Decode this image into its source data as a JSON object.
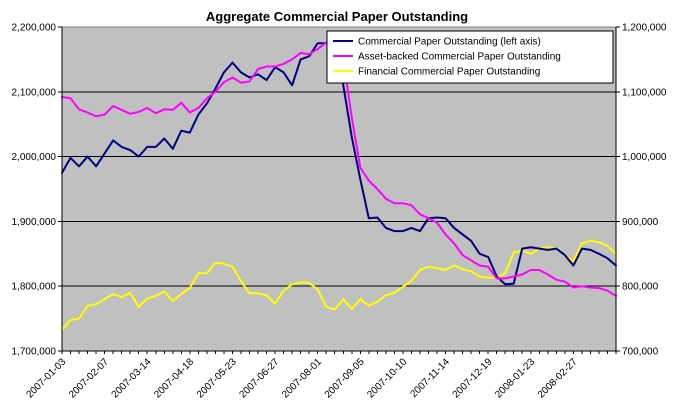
{
  "chart_data": {
    "type": "line",
    "title": "Aggregate Commercial Paper Outstanding",
    "grid": true,
    "legend_position": "top-right",
    "plot_background": "#c0c0c0",
    "left_axis": {
      "range": [
        1700000,
        2200000
      ],
      "ticks": [
        "1,700,000",
        "1,800,000",
        "1,900,000",
        "2,000,000",
        "2,100,000",
        "2,200,000"
      ]
    },
    "right_axis": {
      "range": [
        700000,
        1200000
      ],
      "ticks": [
        "700,000",
        "800,000",
        "900,000",
        "1,000,000",
        "1,100,000",
        "1,200,000"
      ]
    },
    "x_tick_labels": [
      "2007-01-03",
      "2007-02-07",
      "2007-03-14",
      "2007-04-18",
      "2007-05-23",
      "2007-06-27",
      "2007-08-01",
      "2007-09-05",
      "2007-10-10",
      "2007-11-14",
      "2007-12-19",
      "2008-01-23",
      "2008-02-27"
    ],
    "x_index_count": 66,
    "series": [
      {
        "name": "Commercial Paper Outstanding (left axis)",
        "axis": "left",
        "color": "#000080",
        "values": [
          1975000,
          1998000,
          1985000,
          2000000,
          1985000,
          2005000,
          2025000,
          2015000,
          2010000,
          2000000,
          2015000,
          2015000,
          2028000,
          2012000,
          2040000,
          2037000,
          2065000,
          2082000,
          2105000,
          2130000,
          2145000,
          2130000,
          2122000,
          2127000,
          2118000,
          2138000,
          2130000,
          2110000,
          2150000,
          2155000,
          2175000,
          2175000,
          2185000,
          2110000,
          2030000,
          1965000,
          1905000,
          1906000,
          1890000,
          1885000,
          1885000,
          1890000,
          1885000,
          1905000,
          1906000,
          1905000,
          1890000,
          1880000,
          1870000,
          1850000,
          1845000,
          1815000,
          1803000,
          1804000,
          1858000,
          1860000,
          1858000,
          1856000,
          1858000,
          1848000,
          1832000,
          1858000,
          1856000,
          1850000,
          1843000,
          1832000
        ]
      },
      {
        "name": "Asset-backed Commercial Paper Outstanding",
        "axis": "right",
        "color": "#ff00ff",
        "values": [
          1092000,
          1090000,
          1073000,
          1068000,
          1062000,
          1065000,
          1078000,
          1072000,
          1066000,
          1069000,
          1075000,
          1067000,
          1073000,
          1072000,
          1083000,
          1068000,
          1075000,
          1090000,
          1100000,
          1115000,
          1122000,
          1114000,
          1116000,
          1135000,
          1139000,
          1139000,
          1143000,
          1150000,
          1160000,
          1158000,
          1166000,
          1176000,
          1185000,
          1150000,
          1060000,
          983000,
          963000,
          950000,
          935000,
          928000,
          928000,
          925000,
          911000,
          905000,
          898000,
          880000,
          866000,
          848000,
          840000,
          832000,
          830000,
          812000,
          812000,
          815000,
          818000,
          825000,
          825000,
          818000,
          810000,
          807000,
          798000,
          800000,
          798000,
          797000,
          793000,
          785000
        ]
      },
      {
        "name": "Financial Commercial Paper Outstanding",
        "axis": "right",
        "color": "#ffff00",
        "values": [
          733000,
          748000,
          750000,
          770000,
          772000,
          780000,
          788000,
          783000,
          790000,
          768000,
          781000,
          785000,
          792000,
          777000,
          788000,
          797000,
          820000,
          820000,
          836000,
          835000,
          830000,
          808000,
          789000,
          789000,
          786000,
          773000,
          793000,
          803000,
          806000,
          805000,
          795000,
          768000,
          764000,
          780000,
          765000,
          780000,
          770000,
          776000,
          786000,
          790000,
          799000,
          808000,
          825000,
          830000,
          828000,
          825000,
          832000,
          826000,
          823000,
          815000,
          813000,
          813000,
          820000,
          852000,
          855000,
          850000,
          858000,
          860000,
          858000,
          848000,
          838000,
          866000,
          870000,
          868000,
          862000,
          850000
        ]
      }
    ]
  }
}
